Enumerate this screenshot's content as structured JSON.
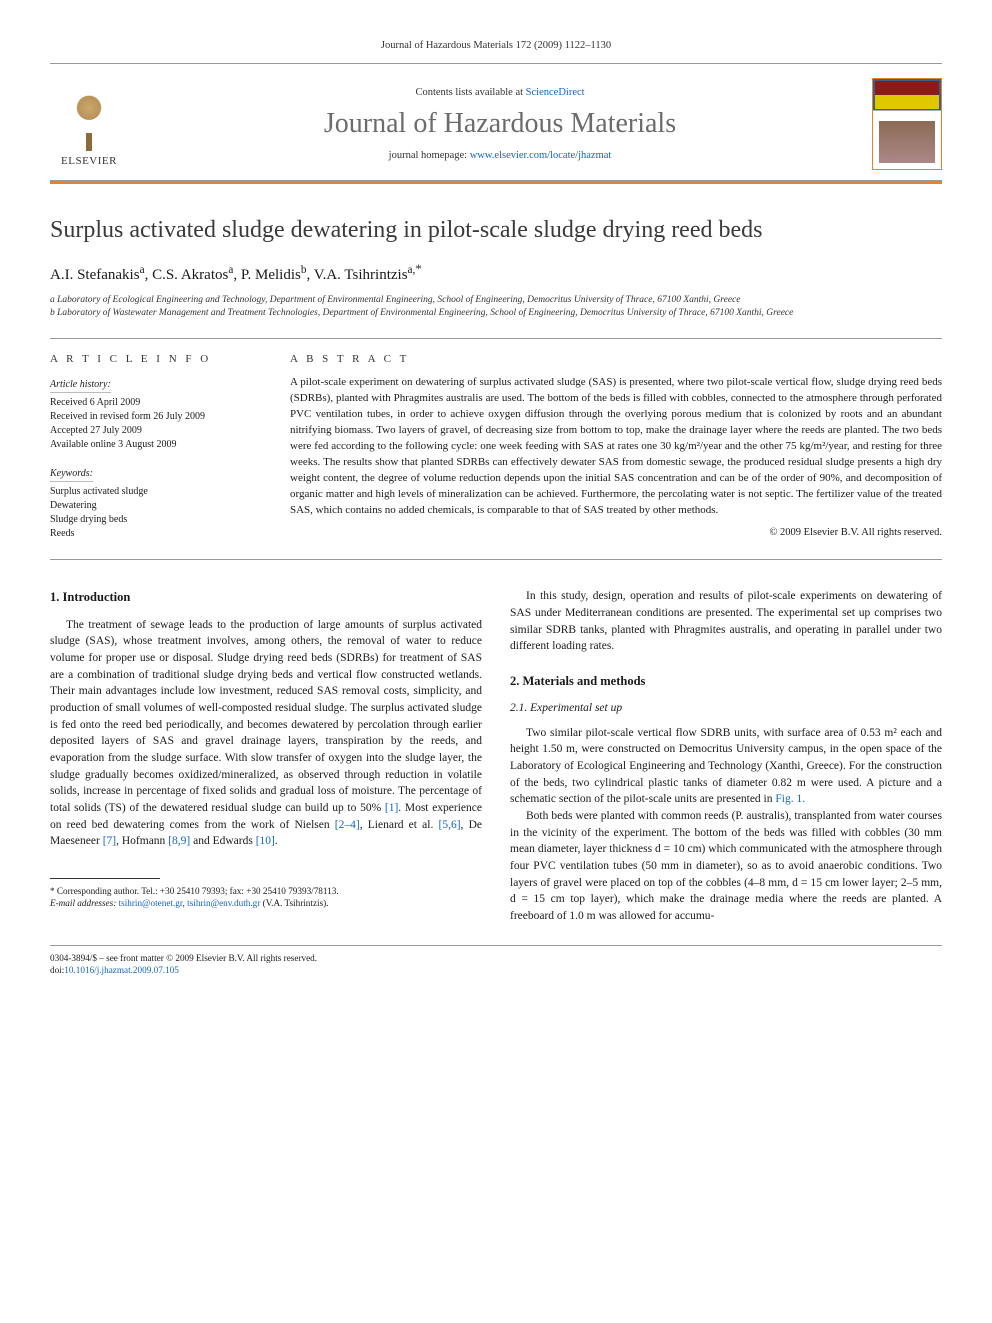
{
  "running_header": "Journal of Hazardous Materials 172 (2009) 1122–1130",
  "masthead": {
    "contents_prefix": "Contents lists available at ",
    "contents_link": "ScienceDirect",
    "journal_name": "Journal of Hazardous Materials",
    "homepage_prefix": "journal homepage: ",
    "homepage_link": "www.elsevier.com/locate/jhazmat",
    "elsevier_label": "ELSEVIER"
  },
  "title": "Surplus activated sludge dewatering in pilot-scale sludge drying reed beds",
  "authors_html": "A.I. Stefanakis<sup>a</sup>, C.S. Akratos<sup>a</sup>, P. Melidis<sup>b</sup>, V.A. Tsihrintzis<sup>a,*</sup>",
  "affiliations": {
    "a": "a Laboratory of Ecological Engineering and Technology, Department of Environmental Engineering, School of Engineering, Democritus University of Thrace, 67100 Xanthi, Greece",
    "b": "b Laboratory of Wastewater Management and Treatment Technologies, Department of Environmental Engineering, School of Engineering, Democritus University of Thrace, 67100 Xanthi, Greece"
  },
  "info": {
    "heading_left": "A R T I C L E   I N F O",
    "heading_right": "A B S T R A C T",
    "history_label": "Article history:",
    "history": [
      "Received 6 April 2009",
      "Received in revised form 26 July 2009",
      "Accepted 27 July 2009",
      "Available online 3 August 2009"
    ],
    "keywords_label": "Keywords:",
    "keywords": [
      "Surplus activated sludge",
      "Dewatering",
      "Sludge drying beds",
      "Reeds"
    ],
    "abstract": "A pilot-scale experiment on dewatering of surplus activated sludge (SAS) is presented, where two pilot-scale vertical flow, sludge drying reed beds (SDRBs), planted with Phragmites australis are used. The bottom of the beds is filled with cobbles, connected to the atmosphere through perforated PVC ventilation tubes, in order to achieve oxygen diffusion through the overlying porous medium that is colonized by roots and an abundant nitrifying biomass. Two layers of gravel, of decreasing size from bottom to top, make the drainage layer where the reeds are planted. The two beds were fed according to the following cycle: one week feeding with SAS at rates one 30 kg/m²/year and the other 75 kg/m²/year, and resting for three weeks. The results show that planted SDRBs can effectively dewater SAS from domestic sewage, the produced residual sludge presents a high dry weight content, the degree of volume reduction depends upon the initial SAS concentration and can be of the order of 90%, and decomposition of organic matter and high levels of mineralization can be achieved. Furthermore, the percolating water is not septic. The fertilizer value of the treated SAS, which contains no added chemicals, is comparable to that of SAS treated by other methods.",
    "copyright": "© 2009 Elsevier B.V. All rights reserved."
  },
  "body": {
    "section1_heading": "1. Introduction",
    "intro_p1": "The treatment of sewage leads to the production of large amounts of surplus activated sludge (SAS), whose treatment involves, among others, the removal of water to reduce volume for proper use or disposal. Sludge drying reed beds (SDRBs) for treatment of SAS are a combination of traditional sludge drying beds and vertical flow constructed wetlands. Their main advantages include low investment, reduced SAS removal costs, simplicity, and production of small volumes of well-composted residual sludge. The surplus activated sludge is fed onto the reed bed periodically, and becomes dewatered by percolation through earlier deposited layers of SAS and gravel drainage layers, transpiration by the reeds, and evaporation from the sludge surface. With slow transfer of oxygen into the sludge layer, the sludge gradually becomes oxidized/mineralized, as observed through reduction in volatile solids, increase in percentage of fixed solids and gradual loss of moisture. The percentage of total solids (TS) of the dewatered residual sludge can build up to 50% ",
    "intro_refs": "[1]. Most experience on reed bed dewatering comes from the work of Nielsen [2–4], Lienard et al. [5,6], De Maeseneer [7], Hofmann [8,9] and Edwards [10].",
    "intro_p2": "In this study, design, operation and results of pilot-scale experiments on dewatering of SAS under Mediterranean conditions are presented. The experimental set up comprises two similar SDRB tanks, planted with Phragmites australis, and operating in parallel under two different loading rates.",
    "section2_heading": "2. Materials and methods",
    "section21_heading": "2.1. Experimental set up",
    "methods_p1": "Two similar pilot-scale vertical flow SDRB units, with surface area of 0.53 m² each and height 1.50 m, were constructed on Democritus University campus, in the open space of the Laboratory of Ecological Engineering and Technology (Xanthi, Greece). For the construction of the beds, two cylindrical plastic tanks of diameter 0.82 m were used. A picture and a schematic section of the pilot-scale units are presented in ",
    "methods_fig": "Fig. 1.",
    "methods_p2": "Both beds were planted with common reeds (P. australis), transplanted from water courses in the vicinity of the experiment. The bottom of the beds was filled with cobbles (30 mm mean diameter, layer thickness d = 10 cm) which communicated with the atmosphere through four PVC ventilation tubes (50 mm in diameter), so as to avoid anaerobic conditions. Two layers of gravel were placed on top of the cobbles (4–8 mm, d = 15 cm lower layer; 2–5 mm, d = 15 cm top layer), which make the drainage media where the reeds are planted. A freeboard of 1.0 m was allowed for accumu-"
  },
  "footnote": {
    "corr": "* Corresponding author. Tel.: +30 25410 79393; fax: +30 25410 79393/78113.",
    "email_label": "E-mail addresses: ",
    "email1": "tsihrin@otenet.gr",
    "email_sep": ", ",
    "email2": "tsihrin@env.duth.gr",
    "email_name": " (V.A. Tsihrintzis)."
  },
  "footer": {
    "line1": "0304-3894/$ – see front matter © 2009 Elsevier B.V. All rights reserved.",
    "doi_label": "doi:",
    "doi": "10.1016/j.jhazmat.2009.07.105"
  }
}
